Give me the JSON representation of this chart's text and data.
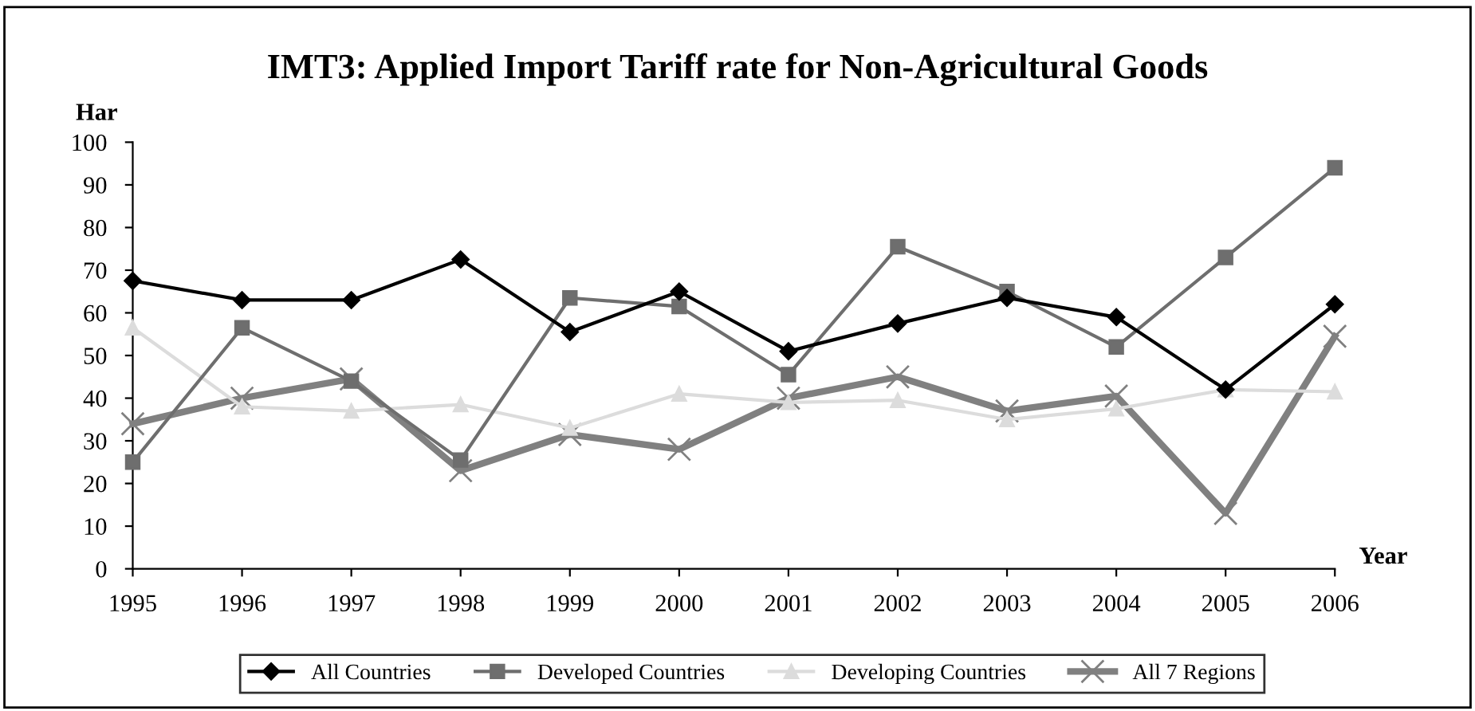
{
  "chart_data": {
    "type": "line",
    "title": "IMT3: Applied Import Tariff rate for Non-Agricultural Goods",
    "ylabel": "Har",
    "xlabel": "Year",
    "categories": [
      "1995",
      "1996",
      "1997",
      "1998",
      "1999",
      "2000",
      "2001",
      "2002",
      "2003",
      "2004",
      "2005",
      "2006"
    ],
    "series": [
      {
        "name": "All Countries",
        "color": "#000000",
        "marker": "diamond",
        "values": [
          67.5,
          63,
          63,
          72.5,
          55.5,
          65,
          51,
          57.5,
          63.5,
          59,
          42,
          62
        ]
      },
      {
        "name": "Developed Countries",
        "color": "#6e6e6e",
        "marker": "square",
        "values": [
          25,
          56.5,
          44,
          25.5,
          63.5,
          61.5,
          45.5,
          75.5,
          65,
          52,
          73,
          94
        ]
      },
      {
        "name": "Developing Countries",
        "color": "#dcdcdc",
        "marker": "triangle",
        "values": [
          56.5,
          38,
          37,
          38.5,
          33,
          41,
          39,
          39.5,
          35,
          37.5,
          42,
          41.5
        ]
      },
      {
        "name": "All 7 Regions",
        "color": "#808080",
        "marker": "cross",
        "values": [
          34,
          40,
          44.5,
          23,
          31.5,
          28,
          40,
          45,
          37,
          40.5,
          13,
          54.5
        ]
      }
    ],
    "ylim": [
      0,
      100
    ],
    "yticks": [
      0,
      10,
      20,
      30,
      40,
      50,
      60,
      70,
      80,
      90,
      100
    ],
    "grid": false,
    "legend": "bottom"
  }
}
